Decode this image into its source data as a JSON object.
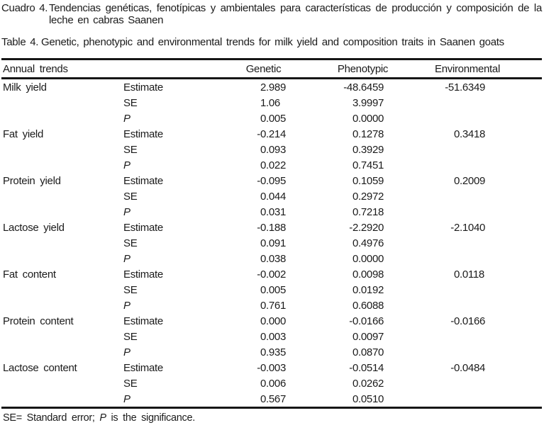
{
  "colors": {
    "text": "#1b1b1b",
    "background": "#ffffff",
    "rule": "#161616"
  },
  "captions": {
    "spanish_label": "Cuadro 4.",
    "spanish_text": "Tendencias genéticas, fenotípicas y ambientales para características de producción y composición de la leche en cabras Saanen",
    "english_label": "Table 4.",
    "english_text": "Genetic, phenotypic and environmental trends for milk yield and composition traits in Saanen goats"
  },
  "table": {
    "header": {
      "trait": "Annual trends",
      "genetic": "Genetic",
      "phenotypic": "Phenotypic",
      "environmental": "Environmental"
    },
    "row_labels": [
      "Estimate",
      "SE",
      "P"
    ],
    "traits": [
      {
        "name": "Milk yield",
        "genetic": [
          "2.989",
          "1.06",
          "0.005"
        ],
        "phenotypic": [
          "-48.6459",
          "3.9997",
          "0.0000"
        ],
        "environmental": [
          "-51.6349",
          "",
          ""
        ]
      },
      {
        "name": "Fat yield",
        "genetic": [
          "-0.214",
          "0.093",
          "0.022"
        ],
        "phenotypic": [
          "0.1278",
          "0.3929",
          "0.7451"
        ],
        "environmental": [
          "0.3418",
          "",
          ""
        ]
      },
      {
        "name": "Protein yield",
        "genetic": [
          "-0.095",
          "0.044",
          "0.031"
        ],
        "phenotypic": [
          "0.1059",
          "0.2972",
          "0.7218"
        ],
        "environmental": [
          "0.2009",
          "",
          ""
        ]
      },
      {
        "name": "Lactose yield",
        "genetic": [
          "-0.188",
          "0.091",
          "0.038"
        ],
        "phenotypic": [
          "-2.2920",
          "0.4976",
          "0.0000"
        ],
        "environmental": [
          "-2.1040",
          "",
          ""
        ]
      },
      {
        "name": "Fat content",
        "genetic": [
          "-0.002",
          "0.005",
          "0.761"
        ],
        "phenotypic": [
          "0.0098",
          "0.0192",
          "0.6088"
        ],
        "environmental": [
          "0.0118",
          "",
          ""
        ]
      },
      {
        "name": "Protein content",
        "genetic": [
          "0.000",
          "0.003",
          "0.935"
        ],
        "phenotypic": [
          "-0.0166",
          "0.0097",
          "0.0870"
        ],
        "environmental": [
          "-0.0166",
          "",
          ""
        ]
      },
      {
        "name": "Lactose content",
        "genetic": [
          "-0.003",
          "0.006",
          "0.567"
        ],
        "phenotypic": [
          "-0.0514",
          "0.0262",
          "0.0510"
        ],
        "environmental": [
          "-0.0484",
          "",
          ""
        ]
      }
    ],
    "footnote": {
      "prefix": "SE= Standard error; ",
      "p_symbol": "P",
      "suffix": " is the significance."
    }
  }
}
